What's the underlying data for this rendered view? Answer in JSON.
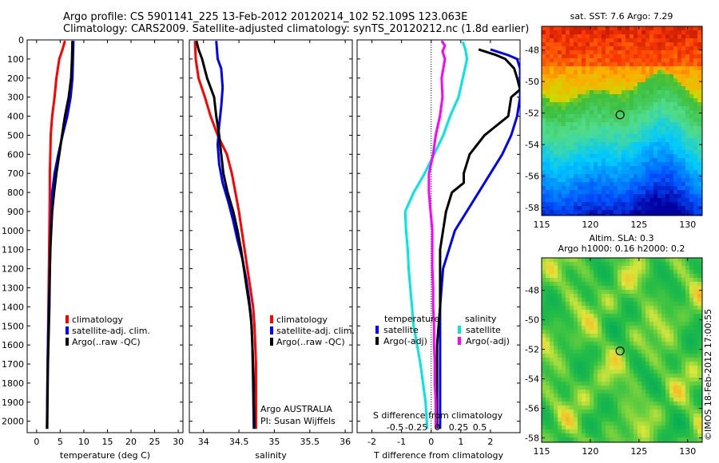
{
  "header": {
    "line1": "Argo profile: CS 5901141_225 13-Feb-2012 20120214_102 52.109S 123.063E",
    "line2": "Climatology: CARS2009. Satellite-adjusted climatology: synTS_20120212.nc (1.8d earlier)"
  },
  "footer_credit": "©IMOS 18-Feb-2012 17:00:55",
  "argo_info": {
    "line1": "Argo AUSTRALIA",
    "line2": "PI: Susan Wijffels"
  },
  "colors": {
    "climatology": "#ff0000",
    "satellite": "#0000ff",
    "argo": "#000000",
    "sat_salinity": "#00e5e5",
    "argo_salinity": "#ff00ff"
  },
  "chart_data": [
    {
      "type": "line",
      "name": "temperature",
      "xlabel": "temperature (deg C)",
      "ylabel": "",
      "xlim": [
        -2,
        31
      ],
      "ylim": [
        2060,
        0
      ],
      "xticks": [
        0,
        5,
        10,
        15,
        20,
        25,
        30
      ],
      "yticks": [
        0,
        100,
        200,
        300,
        400,
        500,
        600,
        700,
        800,
        900,
        1000,
        1100,
        1200,
        1300,
        1400,
        1500,
        1600,
        1700,
        1800,
        1900,
        2000
      ],
      "legend": [
        "climatology",
        "satellite-adj. clim.",
        "Argo(..raw -QC)"
      ],
      "series": [
        {
          "name": "climatology",
          "color": "#ff0000",
          "points": [
            [
              6.0,
              5
            ],
            [
              5.5,
              50
            ],
            [
              4.8,
              100
            ],
            [
              4.2,
              200
            ],
            [
              3.8,
              300
            ],
            [
              3.3,
              400
            ],
            [
              3.0,
              500
            ],
            [
              2.9,
              600
            ],
            [
              2.8,
              700
            ],
            [
              2.8,
              800
            ],
            [
              2.7,
              1000
            ],
            [
              2.6,
              1200
            ],
            [
              2.5,
              1400
            ],
            [
              2.4,
              1600
            ],
            [
              2.3,
              1800
            ],
            [
              2.2,
              2040
            ]
          ]
        },
        {
          "name": "satellite-adj. clim.",
          "color": "#0000ff",
          "points": [
            [
              7.8,
              5
            ],
            [
              7.7,
              100
            ],
            [
              7.6,
              200
            ],
            [
              7.2,
              300
            ],
            [
              6.5,
              400
            ],
            [
              5.5,
              500
            ],
            [
              4.6,
              600
            ],
            [
              3.8,
              700
            ],
            [
              3.3,
              800
            ],
            [
              3.0,
              1000
            ],
            [
              2.8,
              1200
            ],
            [
              2.6,
              1400
            ],
            [
              2.4,
              1600
            ],
            [
              2.3,
              1800
            ],
            [
              2.2,
              2040
            ]
          ]
        },
        {
          "name": "Argo(..raw -QC)",
          "color": "#000000",
          "points": [
            [
              7.6,
              5
            ],
            [
              7.5,
              100
            ],
            [
              7.3,
              200
            ],
            [
              6.8,
              300
            ],
            [
              6.0,
              400
            ],
            [
              5.4,
              500
            ],
            [
              4.8,
              600
            ],
            [
              4.2,
              700
            ],
            [
              3.7,
              800
            ],
            [
              3.3,
              900
            ],
            [
              3.1,
              1000
            ],
            [
              2.9,
              1100
            ],
            [
              2.8,
              1200
            ],
            [
              2.7,
              1400
            ],
            [
              2.6,
              1500
            ],
            [
              2.5,
              1600
            ],
            [
              2.4,
              1700
            ],
            [
              2.35,
              1800
            ],
            [
              2.3,
              1900
            ],
            [
              2.25,
              2040
            ]
          ]
        }
      ]
    },
    {
      "type": "line",
      "name": "salinity",
      "xlabel": "salinity",
      "ylabel": "",
      "xlim": [
        33.8,
        36.1
      ],
      "ylim": [
        2060,
        0
      ],
      "xticks": [
        34,
        34.5,
        35,
        35.5,
        36
      ],
      "legend": [
        "climatology",
        "satellite-adj. clim.",
        "Argo(..raw -QC)"
      ],
      "series": [
        {
          "name": "climatology",
          "color": "#ff0000",
          "points": [
            [
              33.88,
              5
            ],
            [
              33.89,
              100
            ],
            [
              33.93,
              200
            ],
            [
              34.02,
              300
            ],
            [
              34.1,
              400
            ],
            [
              34.2,
              500
            ],
            [
              34.33,
              600
            ],
            [
              34.4,
              700
            ],
            [
              34.45,
              800
            ],
            [
              34.5,
              900
            ],
            [
              34.54,
              1000
            ],
            [
              34.58,
              1100
            ],
            [
              34.62,
              1200
            ],
            [
              34.66,
              1300
            ],
            [
              34.7,
              1400
            ],
            [
              34.72,
              1500
            ],
            [
              34.73,
              1600
            ],
            [
              34.74,
              1700
            ],
            [
              34.74,
              1800
            ],
            [
              34.74,
              1900
            ],
            [
              34.74,
              2040
            ]
          ]
        },
        {
          "name": "satellite-adj. clim.",
          "color": "#0000ff",
          "points": [
            [
              34.18,
              5
            ],
            [
              34.2,
              100
            ],
            [
              34.25,
              150
            ],
            [
              34.27,
              250
            ],
            [
              34.25,
              350
            ],
            [
              34.22,
              450
            ],
            [
              34.2,
              550
            ],
            [
              34.22,
              650
            ],
            [
              34.27,
              750
            ],
            [
              34.35,
              850
            ],
            [
              34.42,
              950
            ],
            [
              34.48,
              1050
            ],
            [
              34.55,
              1150
            ],
            [
              34.6,
              1250
            ],
            [
              34.64,
              1350
            ],
            [
              34.67,
              1450
            ],
            [
              34.69,
              1600
            ],
            [
              34.7,
              1800
            ],
            [
              34.71,
              2040
            ]
          ]
        },
        {
          "name": "Argo(..raw -QC)",
          "color": "#000000",
          "points": [
            [
              33.9,
              5
            ],
            [
              33.93,
              50
            ],
            [
              33.98,
              100
            ],
            [
              34.05,
              200
            ],
            [
              34.1,
              250
            ],
            [
              34.15,
              300
            ],
            [
              34.18,
              400
            ],
            [
              34.2,
              450
            ],
            [
              34.22,
              500
            ],
            [
              34.25,
              600
            ],
            [
              34.28,
              700
            ],
            [
              34.34,
              800
            ],
            [
              34.42,
              900
            ],
            [
              34.48,
              1000
            ],
            [
              34.53,
              1100
            ],
            [
              34.57,
              1200
            ],
            [
              34.61,
              1300
            ],
            [
              34.65,
              1400
            ],
            [
              34.68,
              1500
            ],
            [
              34.69,
              1600
            ],
            [
              34.7,
              1700
            ],
            [
              34.71,
              1800
            ],
            [
              34.71,
              1900
            ],
            [
              34.72,
              2040
            ]
          ]
        }
      ]
    },
    {
      "type": "line",
      "name": "difference from climatology",
      "xlabel": "T difference from climatology",
      "xlabel_secondary": "S difference from climatology",
      "ylabel": "",
      "xlim": [
        -2.5,
        3
      ],
      "ylim": [
        2060,
        0
      ],
      "xticks": [
        -2,
        -1,
        0,
        1,
        2
      ],
      "xticks_salinity": [
        -0.5,
        -0.25,
        0,
        0.25,
        0.5
      ],
      "legend_temperature_title": "temperature",
      "legend_salinity_title": "salinity",
      "legend": [
        "satellite",
        "Argo(-adj)",
        "satellite",
        "Argo(-adj)"
      ],
      "series": [
        {
          "name": "temperature satellite",
          "color": "#0000ff",
          "points": [
            [
              2.0,
              50
            ],
            [
              2.6,
              80
            ],
            [
              2.9,
              100
            ],
            [
              3.0,
              150
            ],
            [
              3.0,
              300
            ],
            [
              2.9,
              400
            ],
            [
              2.7,
              500
            ],
            [
              2.4,
              600
            ],
            [
              2.0,
              700
            ],
            [
              1.6,
              800
            ],
            [
              1.2,
              900
            ],
            [
              0.8,
              1000
            ],
            [
              0.6,
              1100
            ],
            [
              0.4,
              1200
            ],
            [
              0.35,
              1300
            ],
            [
              0.3,
              1400
            ],
            [
              0.3,
              1500
            ],
            [
              0.3,
              1600
            ],
            [
              0.3,
              1700
            ],
            [
              0.3,
              1800
            ],
            [
              0.3,
              1900
            ],
            [
              0.3,
              2040
            ]
          ]
        },
        {
          "name": "temperature Argo(-adj)",
          "color": "#000000",
          "points": [
            [
              1.6,
              50
            ],
            [
              2.2,
              80
            ],
            [
              2.5,
              100
            ],
            [
              2.8,
              150
            ],
            [
              2.9,
              200
            ],
            [
              3.0,
              260
            ],
            [
              2.7,
              300
            ],
            [
              2.6,
              400
            ],
            [
              2.2,
              450
            ],
            [
              1.8,
              500
            ],
            [
              1.3,
              600
            ],
            [
              1.1,
              700
            ],
            [
              1.1,
              750
            ],
            [
              0.7,
              800
            ],
            [
              0.5,
              900
            ],
            [
              0.4,
              1000
            ],
            [
              0.3,
              1100
            ],
            [
              0.3,
              1200
            ],
            [
              0.3,
              1400
            ],
            [
              0.2,
              1600
            ],
            [
              0.2,
              1800
            ],
            [
              0.2,
              2040
            ]
          ]
        },
        {
          "name": "salinity satellite",
          "color": "#00e5e5",
          "points": [
            [
              0.3,
              10
            ],
            [
              0.33,
              50
            ],
            [
              0.35,
              100
            ],
            [
              0.3,
              200
            ],
            [
              0.25,
              300
            ],
            [
              0.15,
              400
            ],
            [
              0.07,
              500
            ],
            [
              -0.04,
              600
            ],
            [
              -0.15,
              700
            ],
            [
              -0.28,
              800
            ],
            [
              -0.38,
              900
            ],
            [
              -0.37,
              1000
            ],
            [
              -0.35,
              1100
            ],
            [
              -0.34,
              1200
            ],
            [
              -0.32,
              1300
            ],
            [
              -0.3,
              1400
            ],
            [
              -0.28,
              1500
            ],
            [
              -0.24,
              1600
            ],
            [
              -0.2,
              1700
            ],
            [
              -0.17,
              1800
            ],
            [
              -0.14,
              1900
            ],
            [
              -0.12,
              2040
            ]
          ]
        },
        {
          "name": "salinity Argo(-adj)",
          "color": "#ff00ff",
          "points": [
            [
              0.05,
              5
            ],
            [
              0.09,
              30
            ],
            [
              0.06,
              60
            ],
            [
              0.09,
              100
            ],
            [
              0.05,
              200
            ],
            [
              0.06,
              300
            ],
            [
              0.03,
              400
            ],
            [
              -0.02,
              500
            ],
            [
              -0.05,
              600
            ],
            [
              -0.1,
              700
            ],
            [
              -0.1,
              800
            ],
            [
              -0.08,
              900
            ],
            [
              -0.06,
              1000
            ],
            [
              -0.06,
              1100
            ],
            [
              -0.06,
              1200
            ],
            [
              -0.05,
              1300
            ],
            [
              -0.05,
              1400
            ],
            [
              -0.04,
              1500
            ],
            [
              -0.04,
              1600
            ],
            [
              -0.03,
              1700
            ],
            [
              -0.03,
              1800
            ],
            [
              -0.02,
              1900
            ],
            [
              -0.02,
              2040
            ]
          ]
        }
      ]
    },
    {
      "type": "heatmap",
      "name": "satellite SST map",
      "title": "sat. SST: 7.6 Argo: 7.29",
      "xlim": [
        115,
        131.5
      ],
      "ylim": [
        -58.5,
        -46.5
      ],
      "xticks": [
        115,
        120,
        125,
        130
      ],
      "yticks": [
        -48,
        -50,
        -52,
        -54,
        -56,
        -58
      ],
      "marker": {
        "lon": 123.06,
        "lat": -52.11
      }
    },
    {
      "type": "heatmap",
      "name": "altimetry SLA map",
      "title_line1": "Altim. SLA: 0.3",
      "title_line2": "Argo h1000: 0.16 h2000: 0.2",
      "xlim": [
        115,
        131.5
      ],
      "ylim": [
        -58.3,
        -45.8
      ],
      "xticks": [
        115,
        120,
        125,
        130
      ],
      "yticks": [
        -48,
        -50,
        -52,
        -54,
        -56,
        -58
      ],
      "marker": {
        "lon": 123.06,
        "lat": -52.11
      }
    }
  ]
}
